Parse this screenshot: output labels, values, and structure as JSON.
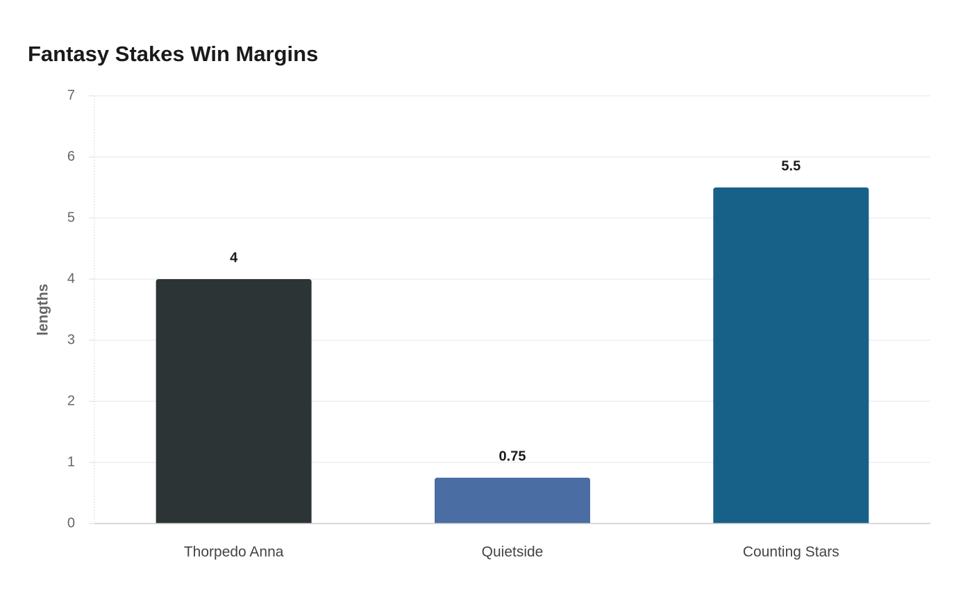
{
  "chart_data": {
    "type": "bar",
    "title": "Fantasy Stakes Win Margins",
    "y_label": "lengths",
    "categories": [
      "Thorpedo Anna",
      "Quietside",
      "Counting Stars"
    ],
    "values": [
      4,
      0.75,
      5.5
    ],
    "colors": [
      "#2d3436",
      "#4a6da3",
      "#176188"
    ],
    "ylim": [
      0,
      7
    ],
    "yticks": [
      0,
      1,
      2,
      3,
      4,
      5,
      6,
      7
    ],
    "grid": true
  }
}
